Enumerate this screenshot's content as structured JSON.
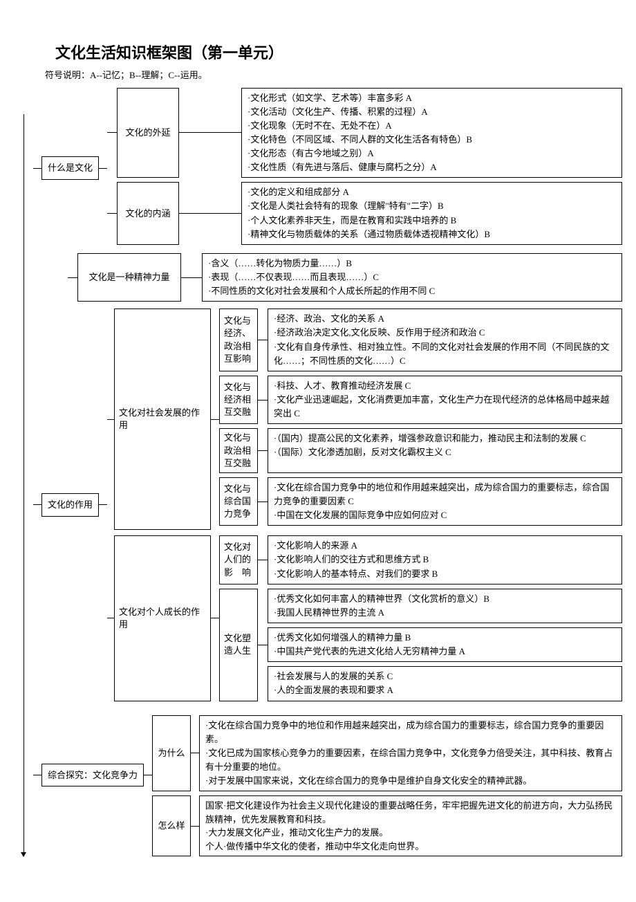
{
  "doc": {
    "title": "文化生活知识框架图（第一单元）",
    "legend": "符号说明：A--记忆；B--理解；C--运用。"
  },
  "s1": {
    "root": "什么是文化",
    "b1": {
      "label": "文化的外延",
      "items": [
        "文化形式（如文学、艺术等）丰富多彩 A",
        "文化活动（文化生产、传播、积累的过程）A",
        "文化现象（无时不在、无处不在）A",
        "文化特色（不同区域、不同人群的文化生活各有特色）B",
        "文化形态（有古今地域之别）A",
        "文化性质（有先进与落后、健康与腐朽之分）A"
      ]
    },
    "b2": {
      "label": "文化的内涵",
      "items": [
        "文化的定义和组成部分 A",
        "文化是人类社会特有的现象（理解\"特有\"二字）B",
        "个人文化素养非天生，而是在教育和实践中培养的 B",
        "精神文化与物质载体的关系（通过物质载体透视精神文化）B"
      ]
    },
    "b3": {
      "label": "文化是一种精神力量",
      "items": [
        "含义（……转化为物质力量……）B",
        "表现（……不仅表现……而且表现……）C",
        "不同性质的文化对社会发展和个人成长所起的作用不同 C"
      ]
    }
  },
  "s2": {
    "root": "文化的作用",
    "b1": {
      "label": "文化对社会发展的作用",
      "sub": [
        {
          "mid": "文化与经济、政治相互影响",
          "items": [
            "经济、政治、文化的关系 A",
            "经济政治决定文化,文化反映、反作用于经济和政治 C",
            "文化有自身传承性、相对独立性。不同的文化对社会发展的作用不同（不同民族的文化……；不同性质的文化……）C"
          ]
        },
        {
          "mid": "文化与经济相互交融",
          "items": [
            "科技、人才、教育推动经济发展 C",
            "文化产业迅速崛起，文化消费更加丰富，文化生产力在现代经济的总体格局中越来越突出 C"
          ]
        },
        {
          "mid": "文化与政治相互交融",
          "items": [
            "（国内）提高公民的文化素养，增强参政意识和能力，推动民主和法制的发展 C",
            "（国际）文化渗透加剧，反对文化霸权主义 C"
          ]
        },
        {
          "mid": "文化与综合国力竞争",
          "items": [
            "文化在综合国力竞争中的地位和作用越来越突出，成为综合国力的重要标志，综合国力竞争的重要因素 C",
            "中国在文化发展的国际竞争中应如何应对 C"
          ]
        }
      ]
    },
    "b2": {
      "label": "文化对个人成长的作用",
      "sub1": {
        "mid": "文化对人们的影　响",
        "items": [
          "文化影响人的来源 A",
          "文化影响人们的交往方式和思维方式 B",
          "文化影响人的基本特点、对我们的要求 B"
        ]
      },
      "sub2": {
        "mid": "文化塑造人生",
        "d1": [
          "优秀文化如何丰富人的精神世界（文化赏析的意义）B",
          "我国人民精神世界的主流 A"
        ],
        "d2": [
          "优秀文化如何增强人的精神力量 B",
          "中国共产党代表的先进文化给人无穷精神力量 A"
        ],
        "d3": [
          "社会发展与人的发展的关系 C",
          "人的全面发展的表现和要求 A"
        ]
      }
    }
  },
  "s3": {
    "root": "综合探究：文化竞争力",
    "b1": {
      "label": "为什么",
      "items": [
        "文化在综合国力竞争中的地位和作用越来越突出，成为综合国力的重要标志，综合国力竞争的重要因素。",
        "文化已成为国家核心竞争力的重要因素，在综合国力竞争中，文化竞争力倍受关注，其中科技、教育占有十分重要的地位。",
        "对于发展中国家来说，文化在综合国力的竞争中是维护自身文化安全的精神武器。"
      ]
    },
    "b2": {
      "label": "怎么样",
      "text": "国家·把文化建设作为社会主义现代化建设的重要战略任务，牢牢把握先进文化的前进方向，大力弘扬民族精神，优先发展教育和科技。\n·大力发展文化产业，推动文化生产力的发展。\n个人·做传播中华文化的使者，推动中华文化走向世界。"
    }
  },
  "style": {
    "border_color": "#000000",
    "background": "#ffffff",
    "title_fontsize": 22,
    "body_fontsize": 13,
    "font_family": "SimSun"
  }
}
